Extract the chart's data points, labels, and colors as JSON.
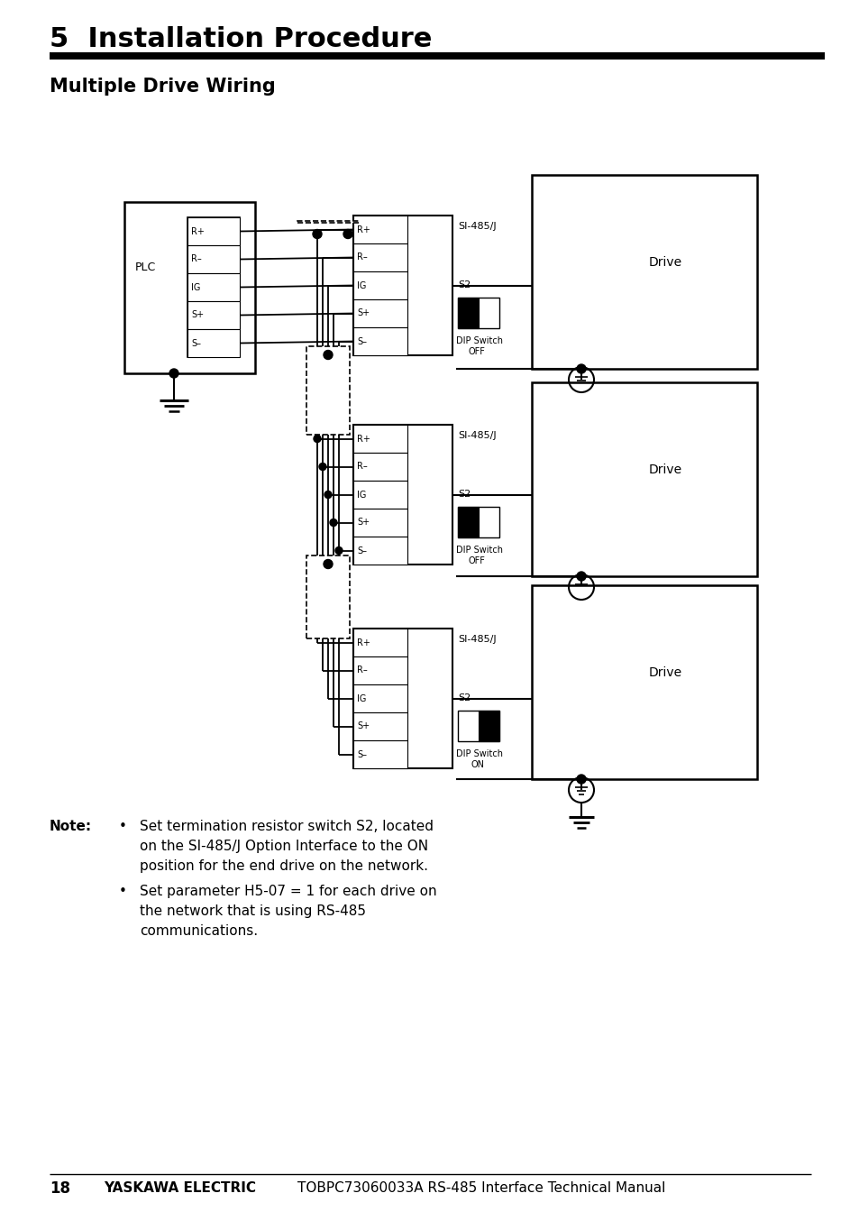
{
  "page_title": "5  Installation Procedure",
  "section_title": "Multiple Drive Wiring",
  "note_bullet1_line1": "Set termination resistor switch S2, located",
  "note_bullet1_line2": "on the SI-485/J Option Interface to the ON",
  "note_bullet1_line3": "position for the end drive on the network.",
  "note_bullet2_line1": "Set parameter H5-07 = 1 for each drive on",
  "note_bullet2_line2": "the network that is using RS-485",
  "note_bullet2_line3": "communications.",
  "footer_num": "18",
  "footer_bold": "YASKAWA ELECTRIC",
  "footer_normal": "TOBPC73060033A RS-485 Interface Technical Manual",
  "bg_color": "#ffffff",
  "line_color": "#000000"
}
